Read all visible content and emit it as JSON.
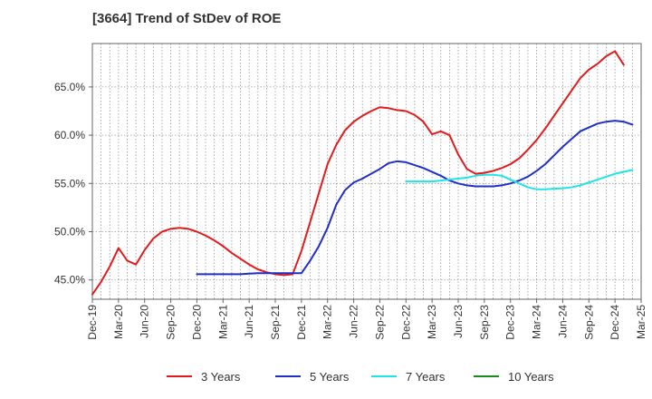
{
  "chart_data": {
    "type": "line",
    "title": "[3664]  Trend of StDev of ROE",
    "xlabel": "",
    "ylabel": "",
    "x_tick_labels": [
      "Dec-19",
      "Mar-20",
      "Jun-20",
      "Sep-20",
      "Dec-20",
      "Mar-21",
      "Jun-21",
      "Sep-21",
      "Dec-21",
      "Mar-22",
      "Jun-22",
      "Sep-22",
      "Dec-22",
      "Mar-23",
      "Jun-23",
      "Sep-23",
      "Dec-23",
      "Mar-24",
      "Jun-24",
      "Sep-24",
      "Dec-24",
      "Mar-25"
    ],
    "y_ticks": [
      45.0,
      50.0,
      55.0,
      60.0,
      65.0
    ],
    "y_tick_labels": [
      "45.0%",
      "50.0%",
      "55.0%",
      "60.0%",
      "65.0%"
    ],
    "ylim": [
      43.0,
      69.5
    ],
    "grid": true,
    "legend_position": "bottom",
    "series": [
      {
        "name": "3 Years",
        "color": "#e31a1c",
        "start_month_index": 0,
        "values": [
          43.5,
          44.8,
          46.4,
          48.3,
          47.0,
          46.6,
          48.1,
          49.3,
          50.0,
          50.3,
          50.4,
          50.3,
          50.0,
          49.6,
          49.1,
          48.5,
          47.8,
          47.2,
          46.6,
          46.1,
          45.8,
          45.6,
          45.5,
          45.6,
          48.0,
          51.0,
          54.0,
          57.0,
          59.0,
          60.5,
          61.4,
          62.0,
          62.5,
          62.9,
          62.8,
          62.6,
          62.5,
          62.1,
          61.4,
          60.1,
          60.4,
          60.0,
          58.0,
          56.5,
          56.0,
          56.1,
          56.3,
          56.6,
          57.0,
          57.6,
          58.5,
          59.5,
          60.7,
          62.0,
          63.3,
          64.6,
          65.9,
          66.8,
          67.4,
          68.2,
          68.7,
          67.3
        ]
      },
      {
        "name": "5 Years",
        "color": "#1f2fc8",
        "start_month_index": 12,
        "values": [
          45.6,
          45.6,
          45.6,
          45.6,
          45.6,
          45.6,
          45.65,
          45.7,
          45.7,
          45.7,
          45.7,
          45.7,
          45.7,
          47.0,
          48.5,
          50.4,
          52.8,
          54.3,
          55.1,
          55.5,
          56.0,
          56.5,
          57.1,
          57.3,
          57.2,
          56.9,
          56.6,
          56.2,
          55.8,
          55.3,
          55.0,
          54.8,
          54.7,
          54.7,
          54.7,
          54.8,
          55.0,
          55.3,
          55.7,
          56.3,
          57.0,
          57.9,
          58.8,
          59.6,
          60.4,
          60.8,
          61.2,
          61.4,
          61.5,
          61.4,
          61.1
        ]
      },
      {
        "name": "7 Years",
        "color": "#22e3e6",
        "start_month_index": 36,
        "values": [
          55.2,
          55.2,
          55.2,
          55.2,
          55.3,
          55.4,
          55.5,
          55.6,
          55.8,
          55.9,
          55.9,
          55.8,
          55.4,
          55.0,
          54.6,
          54.4,
          54.4,
          54.45,
          54.5,
          54.6,
          54.8,
          55.1,
          55.4,
          55.7,
          56.0,
          56.2,
          56.4
        ]
      },
      {
        "name": "10 Years",
        "color": "#1a8a1a",
        "start_month_index": 0,
        "values": []
      }
    ]
  }
}
